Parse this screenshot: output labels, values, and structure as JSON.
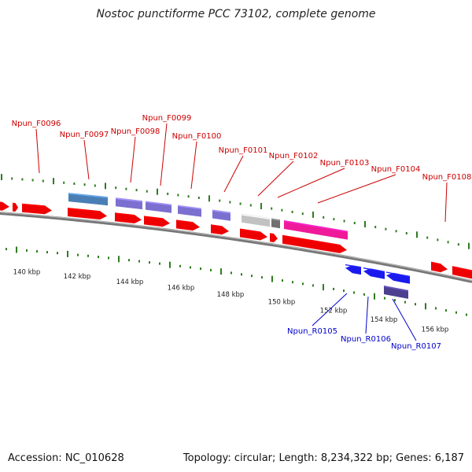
{
  "title": "Nostoc punctiforme PCC 73102, complete genome",
  "footer": {
    "accession": "Accession: NC_010628",
    "stats": "Topology: circular; Length: 8,234,322 bp; Genes: 6,187"
  },
  "colors": {
    "forward_label": "#cc0000",
    "reverse_label": "#0000cc",
    "tick": "#2e7d1f",
    "backbone": "#777777",
    "cds": "#ee0000",
    "gene_steelblue": "#4a7fb5",
    "gene_purple": "#7b6fd0",
    "gene_gray": "#c2c2c2",
    "gene_darkgray": "#707070",
    "gene_pink": "#ee1a9a",
    "reverse_blue": "#1a1aee",
    "reverse_darkpurple": "#4c3f8f"
  },
  "scale_labels": [
    "140 kbp",
    "142 kbp",
    "144 kbp",
    "146 kbp",
    "148 kbp",
    "150 kbp",
    "152 kbp",
    "154 kbp",
    "156 kbp"
  ],
  "forward_genes": [
    "Npun_F0096",
    "Npun_F0097",
    "Npun_F0098",
    "Npun_F0099",
    "Npun_F0100",
    "Npun_F0101",
    "Npun_F0102",
    "Npun_F0103",
    "Npun_F0104",
    "Npun_F0108"
  ],
  "reverse_genes": [
    "Npun_R0105",
    "Npun_R0106",
    "Npun_R0107"
  ]
}
